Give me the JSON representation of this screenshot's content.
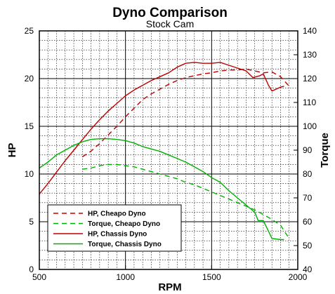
{
  "chart_data": {
    "type": "line",
    "title": "Dyno Comparison",
    "subtitle": "Stock Cam",
    "xlabel": "RPM",
    "ylabel": "HP",
    "y2label": "Torque",
    "xlim": [
      500,
      2000
    ],
    "ylim": [
      0,
      25
    ],
    "y2lim": [
      40,
      140
    ],
    "xticks": [
      500,
      1000,
      1500,
      2000
    ],
    "yticks": [
      0,
      5,
      10,
      15,
      20,
      25
    ],
    "y2ticks": [
      40,
      50,
      60,
      70,
      80,
      90,
      100,
      110,
      120,
      130,
      140
    ],
    "grid": true,
    "legend_position": "bottom-left",
    "series": [
      {
        "name": "HP, Cheapo Dyno",
        "axis": "left",
        "color": "#c00000",
        "dash": "dashed",
        "points": [
          [
            750,
            11.8
          ],
          [
            800,
            12.4
          ],
          [
            850,
            13.2
          ],
          [
            900,
            14.1
          ],
          [
            950,
            15.0
          ],
          [
            1000,
            16.0
          ],
          [
            1050,
            16.9
          ],
          [
            1100,
            17.8
          ],
          [
            1150,
            18.4
          ],
          [
            1200,
            18.9
          ],
          [
            1250,
            19.4
          ],
          [
            1300,
            19.8
          ],
          [
            1350,
            20.1
          ],
          [
            1400,
            20.3
          ],
          [
            1450,
            20.5
          ],
          [
            1500,
            20.6
          ],
          [
            1550,
            20.8
          ],
          [
            1600,
            20.9
          ],
          [
            1650,
            20.9
          ],
          [
            1700,
            21.0
          ],
          [
            1750,
            20.8
          ],
          [
            1800,
            20.6
          ],
          [
            1850,
            20.7
          ],
          [
            1900,
            20.2
          ],
          [
            1950,
            19.2
          ]
        ]
      },
      {
        "name": "Torque, Cheapo Dyno",
        "axis": "right",
        "color": "#00b000",
        "dash": "dashed",
        "points": [
          [
            750,
            82.0
          ],
          [
            800,
            82.5
          ],
          [
            850,
            83.5
          ],
          [
            900,
            84.0
          ],
          [
            950,
            84.0
          ],
          [
            1000,
            83.5
          ],
          [
            1050,
            83.0
          ],
          [
            1100,
            82.0
          ],
          [
            1150,
            81.0
          ],
          [
            1200,
            80.0
          ],
          [
            1250,
            79.0
          ],
          [
            1300,
            78.0
          ],
          [
            1350,
            76.5
          ],
          [
            1400,
            75.5
          ],
          [
            1450,
            74.0
          ],
          [
            1500,
            72.5
          ],
          [
            1550,
            71.0
          ],
          [
            1600,
            69.5
          ],
          [
            1650,
            68.0
          ],
          [
            1700,
            66.5
          ],
          [
            1750,
            65.0
          ],
          [
            1800,
            63.0
          ],
          [
            1850,
            61.0
          ],
          [
            1900,
            58.5
          ],
          [
            1950,
            53.0
          ]
        ]
      },
      {
        "name": "HP, Chassis Dyno",
        "axis": "left",
        "color": "#c00000",
        "dash": "solid",
        "points": [
          [
            500,
            7.9
          ],
          [
            550,
            9.0
          ],
          [
            600,
            10.2
          ],
          [
            650,
            11.4
          ],
          [
            700,
            12.5
          ],
          [
            750,
            13.6
          ],
          [
            800,
            14.7
          ],
          [
            850,
            15.7
          ],
          [
            900,
            16.6
          ],
          [
            950,
            17.4
          ],
          [
            1000,
            18.2
          ],
          [
            1050,
            18.8
          ],
          [
            1100,
            19.3
          ],
          [
            1150,
            19.8
          ],
          [
            1200,
            20.2
          ],
          [
            1250,
            20.6
          ],
          [
            1300,
            21.2
          ],
          [
            1350,
            21.6
          ],
          [
            1400,
            21.7
          ],
          [
            1450,
            21.6
          ],
          [
            1500,
            21.6
          ],
          [
            1550,
            21.7
          ],
          [
            1600,
            21.4
          ],
          [
            1650,
            21.1
          ],
          [
            1700,
            20.8
          ],
          [
            1740,
            20.1
          ],
          [
            1780,
            20.3
          ],
          [
            1800,
            20.5
          ],
          [
            1830,
            19.3
          ],
          [
            1850,
            18.7
          ],
          [
            1900,
            19.1
          ],
          [
            1920,
            19.2
          ]
        ]
      },
      {
        "name": "Torque, Chassis Dyno",
        "axis": "right",
        "color": "#00b000",
        "dash": "solid",
        "points": [
          [
            500,
            82.5
          ],
          [
            550,
            85.0
          ],
          [
            600,
            88.0
          ],
          [
            650,
            90.0
          ],
          [
            700,
            92.0
          ],
          [
            750,
            93.5
          ],
          [
            800,
            94.5
          ],
          [
            850,
            94.8
          ],
          [
            900,
            94.8
          ],
          [
            950,
            94.5
          ],
          [
            1000,
            94.0
          ],
          [
            1050,
            93.0
          ],
          [
            1100,
            91.5
          ],
          [
            1150,
            90.5
          ],
          [
            1200,
            89.5
          ],
          [
            1250,
            88.0
          ],
          [
            1300,
            86.5
          ],
          [
            1350,
            85.0
          ],
          [
            1400,
            83.0
          ],
          [
            1450,
            81.0
          ],
          [
            1500,
            78.5
          ],
          [
            1550,
            76.5
          ],
          [
            1600,
            73.0
          ],
          [
            1650,
            70.0
          ],
          [
            1700,
            67.0
          ],
          [
            1750,
            64.0
          ],
          [
            1770,
            60.5
          ],
          [
            1800,
            60.5
          ],
          [
            1850,
            53.0
          ],
          [
            1900,
            52.5
          ],
          [
            1920,
            52.5
          ]
        ]
      }
    ]
  }
}
